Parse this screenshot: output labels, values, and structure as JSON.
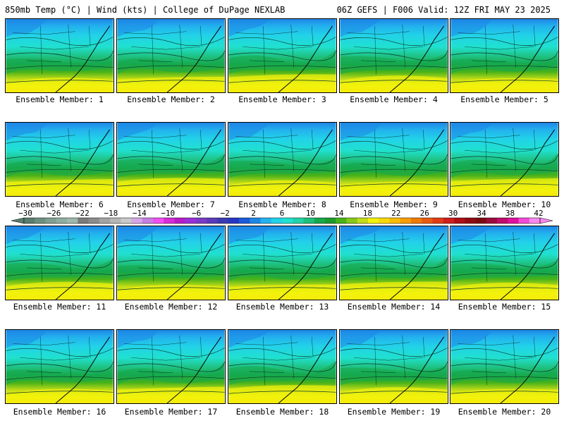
{
  "header": {
    "left": "850mb Temp (°C) | Wind (kts) | College of DuPage NEXLAB",
    "right": "06Z GEFS | F006 Valid: 12Z FRI MAY 23 2025"
  },
  "panels": [
    {
      "caption": "Ensemble Member: 1"
    },
    {
      "caption": "Ensemble Member: 2"
    },
    {
      "caption": "Ensemble Member: 3"
    },
    {
      "caption": "Ensemble Member: 4"
    },
    {
      "caption": "Ensemble Member: 5"
    },
    {
      "caption": "Ensemble Member: 6"
    },
    {
      "caption": "Ensemble Member: 7"
    },
    {
      "caption": "Ensemble Member: 8"
    },
    {
      "caption": "Ensemble Member: 9"
    },
    {
      "caption": "Ensemble Member: 10"
    },
    {
      "caption": "Ensemble Member: 11"
    },
    {
      "caption": "Ensemble Member: 12"
    },
    {
      "caption": "Ensemble Member: 13"
    },
    {
      "caption": "Ensemble Member: 14"
    },
    {
      "caption": "Ensemble Member: 15"
    },
    {
      "caption": "Ensemble Member: 16"
    },
    {
      "caption": "Ensemble Member: 17"
    },
    {
      "caption": "Ensemble Member: 18"
    },
    {
      "caption": "Ensemble Member: 19"
    },
    {
      "caption": "Ensemble Member: 20"
    }
  ],
  "colorbar": {
    "labels": [
      "−30",
      "−26",
      "−22",
      "−18",
      "−14",
      "−10",
      "−6",
      "−2",
      "2",
      "6",
      "10",
      "14",
      "18",
      "22",
      "26",
      "30",
      "34",
      "38",
      "42"
    ],
    "colors": [
      "#5a7d6e",
      "#6d8f80",
      "#7f9f91",
      "#8fada0",
      "#9db8ad",
      "#7b7b7b",
      "#8c8c8c",
      "#a3a3a3",
      "#b6b6b6",
      "#c9c9c9",
      "#d6a6e6",
      "#c47ee0",
      "#f04ff0",
      "#d92ad9",
      "#b81cc8",
      "#9a30d8",
      "#7a3ac6",
      "#5a3ab8",
      "#3a3ab0",
      "#2636c2",
      "#1b5ad8",
      "#1e86e6",
      "#23b2ee",
      "#22d2e8",
      "#20e0cf",
      "#22d2a8",
      "#1fbf7c",
      "#16a84c",
      "#1c9a2c",
      "#48b21a",
      "#86c81a",
      "#c2dc18",
      "#f2f20c",
      "#f8d808",
      "#f8bc08",
      "#f89c08",
      "#f07a08",
      "#e85a10",
      "#e03c16",
      "#d01e1e",
      "#b00e16",
      "#900a12",
      "#7a0a12",
      "#9c0a3c",
      "#c00c6c",
      "#e010a0",
      "#f24ad6",
      "#f887ee"
    ]
  }
}
